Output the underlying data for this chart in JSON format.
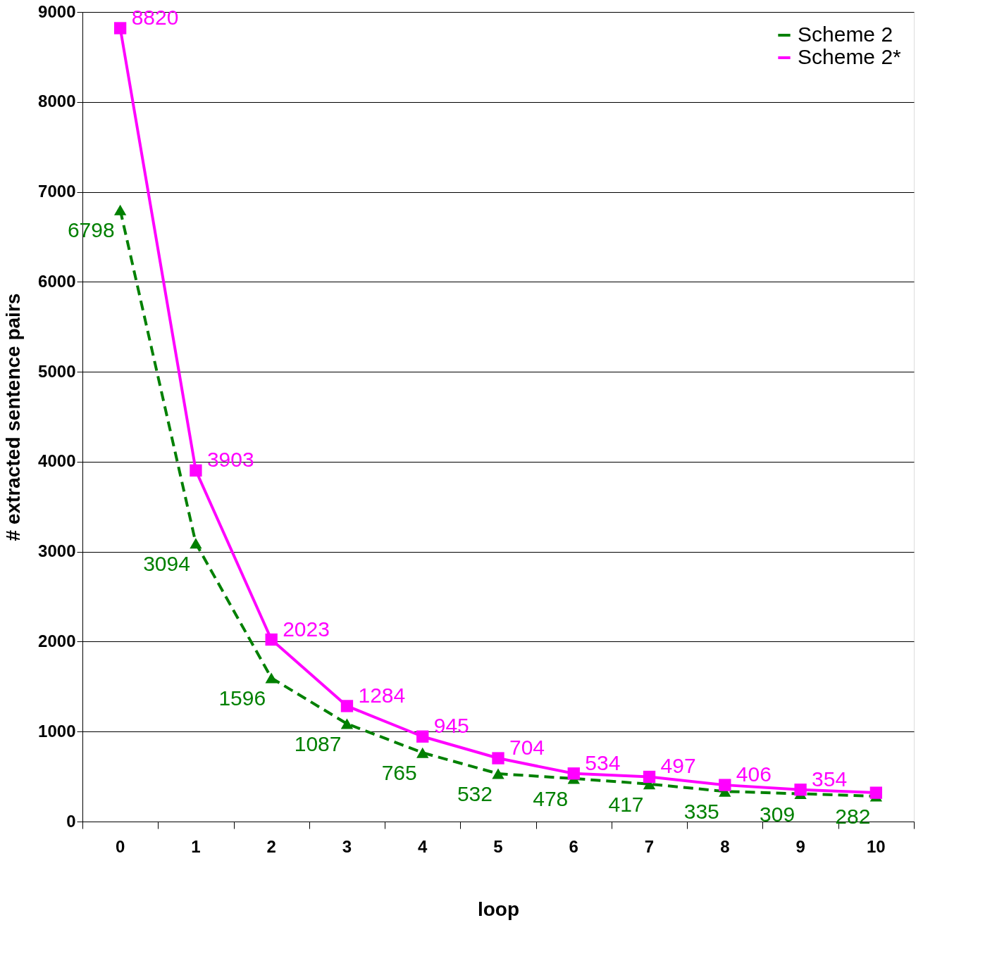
{
  "chart_data": {
    "type": "line",
    "xlabel": "loop",
    "ylabel": "# extracted sentence pairs",
    "categories": [
      "0",
      "1",
      "2",
      "3",
      "4",
      "5",
      "6",
      "7",
      "8",
      "9",
      "10"
    ],
    "ylim": [
      0,
      9000
    ],
    "yticks": [
      0,
      1000,
      2000,
      3000,
      4000,
      5000,
      6000,
      7000,
      8000,
      9000
    ],
    "grid": "y",
    "legend": "top right",
    "series": [
      {
        "name": "Scheme 2",
        "color": "#008000",
        "marker": "triangle",
        "line_style": "dashed",
        "values": [
          6798,
          3094,
          1596,
          1087,
          765,
          532,
          478,
          417,
          335,
          309,
          282
        ],
        "value_labels": [
          "6798",
          "3094",
          "1596",
          "1087",
          "765",
          "532",
          "478",
          "417",
          "335",
          "309",
          "282"
        ]
      },
      {
        "name": "Scheme 2*",
        "color": "#ff00ff",
        "marker": "square",
        "line_style": "solid",
        "values": [
          8820,
          3903,
          2023,
          1284,
          945,
          704,
          534,
          497,
          406,
          354,
          320
        ],
        "value_labels": [
          "8820",
          "3903",
          "2023",
          "1284",
          "945",
          "704",
          "534",
          "497",
          "406",
          "354",
          null
        ]
      }
    ]
  }
}
